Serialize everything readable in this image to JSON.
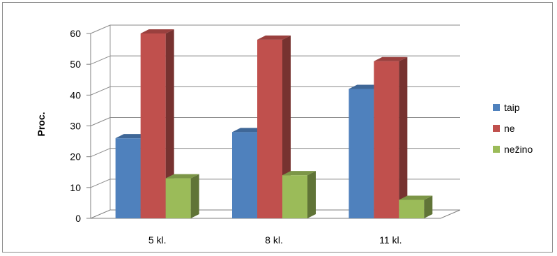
{
  "chart_data": {
    "type": "bar",
    "style": "3d-clustered-column",
    "categories": [
      "5 kl.",
      "8 kl.",
      "11 kl."
    ],
    "series": [
      {
        "name": "taip",
        "values": [
          26,
          28,
          42
        ],
        "color": "#4f81bd"
      },
      {
        "name": "ne",
        "values": [
          60,
          58,
          51
        ],
        "color": "#c0504d"
      },
      {
        "name": "nežino",
        "values": [
          13,
          14,
          6
        ],
        "color": "#9bbb59"
      }
    ],
    "ylabel": "Proc.",
    "xlabel": "",
    "ylim": [
      0,
      60
    ],
    "yticks": [
      0,
      10,
      20,
      30,
      40,
      50,
      60
    ],
    "grid": true,
    "legend": "right"
  }
}
